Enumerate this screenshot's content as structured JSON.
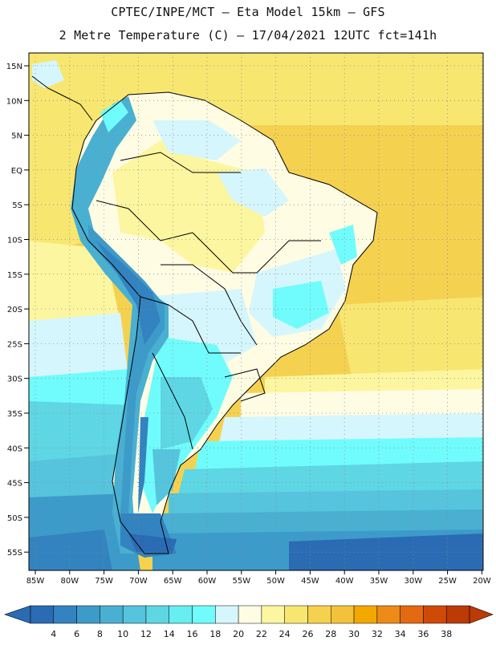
{
  "header": {
    "line1": "CPTEC/INPE/MCT –  Eta Model 15km – GFS",
    "line2": "2 Metre Temperature (C) – 17/04/2021 12UTC fct=141h"
  },
  "lat_labels": [
    "15N",
    "10N",
    "5N",
    "EQ",
    "5S",
    "10S",
    "15S",
    "20S",
    "25S",
    "30S",
    "35S",
    "40S",
    "45S",
    "50S",
    "55S"
  ],
  "lon_labels": [
    "85W",
    "80W",
    "75W",
    "70W",
    "65W",
    "60W",
    "55W",
    "50W",
    "45W",
    "40W",
    "35W",
    "30W",
    "25W",
    "20W"
  ],
  "legend": {
    "values": [
      "4",
      "6",
      "8",
      "10",
      "12",
      "14",
      "16",
      "18",
      "20",
      "22",
      "24",
      "26",
      "28",
      "30",
      "32",
      "34",
      "36",
      "38"
    ],
    "colors": [
      "#2a6bb4",
      "#3383c0",
      "#3d9bc9",
      "#49b0d2",
      "#55c4dc",
      "#5fd6e4",
      "#66eef0",
      "#70fcfc",
      "#d5f6fc",
      "#fffce4",
      "#fdf6a0",
      "#f7e670",
      "#f5d150",
      "#f3c23a",
      "#f3a800",
      "#ed8a18",
      "#e36a10",
      "#cf4a06",
      "#bb3a06"
    ],
    "low_arrow_color": "#2a6bb4",
    "high_arrow_color": "#bb3a06"
  }
}
